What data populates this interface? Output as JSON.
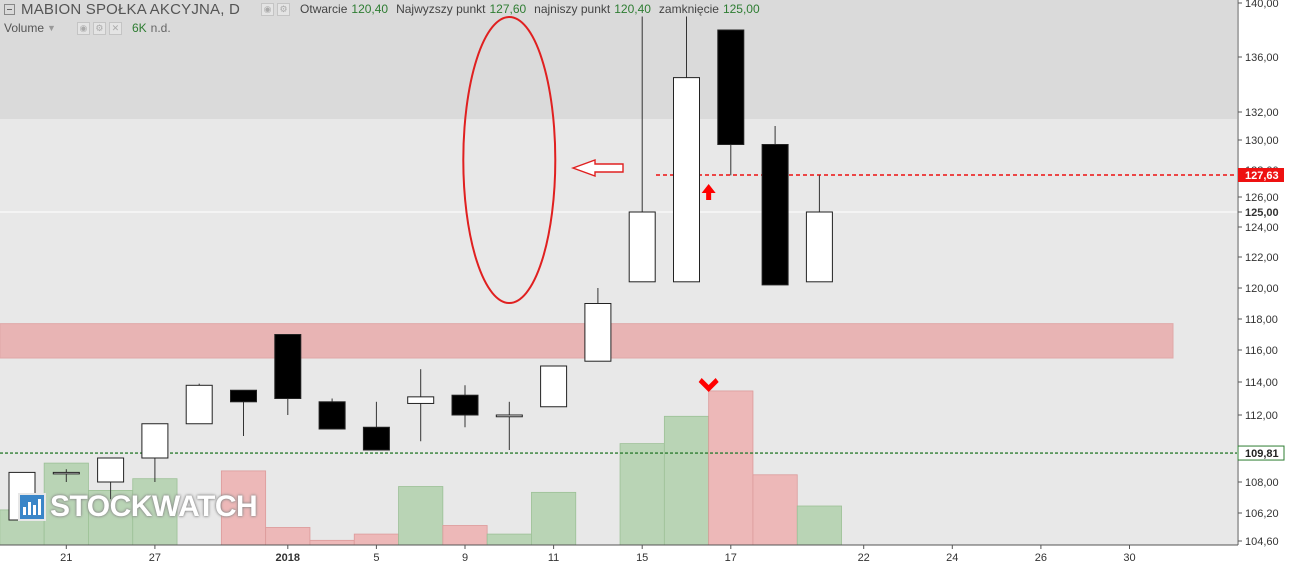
{
  "legend": {
    "symbol": "MABION SPOŁKA AKCYJNA, D",
    "open_label": "Otwarcie",
    "open_value": "120,40",
    "high_label": "Najwyzszy punkt",
    "high_value": "127,60",
    "low_label": "najniszy punkt",
    "low_value": "120,40",
    "close_label": "zamknięcie",
    "close_value": "125,00",
    "volume_label": "Volume",
    "volume_value": "6K",
    "volume_na": "n.d."
  },
  "watermark": "STOCKWATCH",
  "colors": {
    "up_body": "#ffffff",
    "down_body": "#000000",
    "vol_up": "#b9d4b5",
    "vol_down": "#edb8b8",
    "zone_red": "#e8b4b4",
    "band_gray": "#dadada",
    "plot_bg": "#e8e8e8",
    "red_line": "#ee1111",
    "green_line": "#2e7d32"
  },
  "chart_data": {
    "type": "candlestick",
    "y_ticks": [
      "140,00",
      "136,00",
      "132,00",
      "130,00",
      "128,00",
      "126,00",
      "125,00",
      "124,00",
      "122,00",
      "120,00",
      "118,00",
      "116,00",
      "114,00",
      "112,00",
      "110,00",
      "108,00",
      "106,20",
      "104,60"
    ],
    "x_ticks": [
      "21",
      "27",
      "2018",
      "5",
      "9",
      "11",
      "15",
      "17",
      "22",
      "24",
      "26",
      "30"
    ],
    "candles": [
      {
        "o": 105.8,
        "h": 108.6,
        "l": 105.8,
        "c": 108.6,
        "v": 0.9
      },
      {
        "o": 108.6,
        "h": 108.8,
        "l": 108.0,
        "c": 108.6,
        "v": 2.1
      },
      {
        "o": 108.0,
        "h": 109.5,
        "l": 107.0,
        "c": 109.5,
        "v": 1.4
      },
      {
        "o": 109.5,
        "h": 111.5,
        "l": 108.0,
        "c": 111.5,
        "v": 1.7
      },
      {
        "o": 111.5,
        "h": 113.9,
        "l": 111.5,
        "c": 113.8,
        "v": null
      },
      {
        "o": 113.5,
        "h": 113.5,
        "l": 110.8,
        "c": 112.8,
        "v": 1.9
      },
      {
        "o": 117.0,
        "h": 117.0,
        "l": 112.0,
        "c": 113.0,
        "v": 0.45
      },
      {
        "o": 112.8,
        "h": 113.0,
        "l": 111.2,
        "c": 111.2,
        "v": 0.12
      },
      {
        "o": 111.3,
        "h": 112.8,
        "l": 110.0,
        "c": 110.0,
        "v": 0.28
      },
      {
        "o": 112.7,
        "h": 114.8,
        "l": 110.5,
        "c": 113.1,
        "v": 1.5
      },
      {
        "o": 113.2,
        "h": 113.8,
        "l": 111.3,
        "c": 112.0,
        "v": 0.5
      },
      {
        "o": 111.9,
        "h": 112.8,
        "l": 110.0,
        "c": 112.0,
        "v": 0.28
      },
      {
        "o": 112.5,
        "h": 115.0,
        "l": 112.5,
        "c": 115.0,
        "v": 1.35
      },
      {
        "o": 115.3,
        "h": 120.0,
        "l": 115.3,
        "c": 119.0,
        "v": null
      },
      {
        "o": 120.4,
        "h": 139.0,
        "l": 120.4,
        "c": 125.0,
        "v": 2.6
      },
      {
        "o": 120.4,
        "h": 139.0,
        "l": 120.4,
        "c": 134.5,
        "v": 3.3
      },
      {
        "o": 138.0,
        "h": 138.0,
        "l": 127.6,
        "c": 129.7,
        "v": 3.95
      },
      {
        "o": 129.7,
        "h": 131.0,
        "l": 120.2,
        "c": 120.2,
        "v": 1.8
      },
      {
        "o": 120.4,
        "h": 127.6,
        "l": 120.4,
        "c": 125.0,
        "v": 1.0
      }
    ],
    "last_price_label": "127,63",
    "current_price_label": "125,00",
    "support_label": "109,81",
    "resistance_zone": [
      115.5,
      117.7
    ]
  }
}
